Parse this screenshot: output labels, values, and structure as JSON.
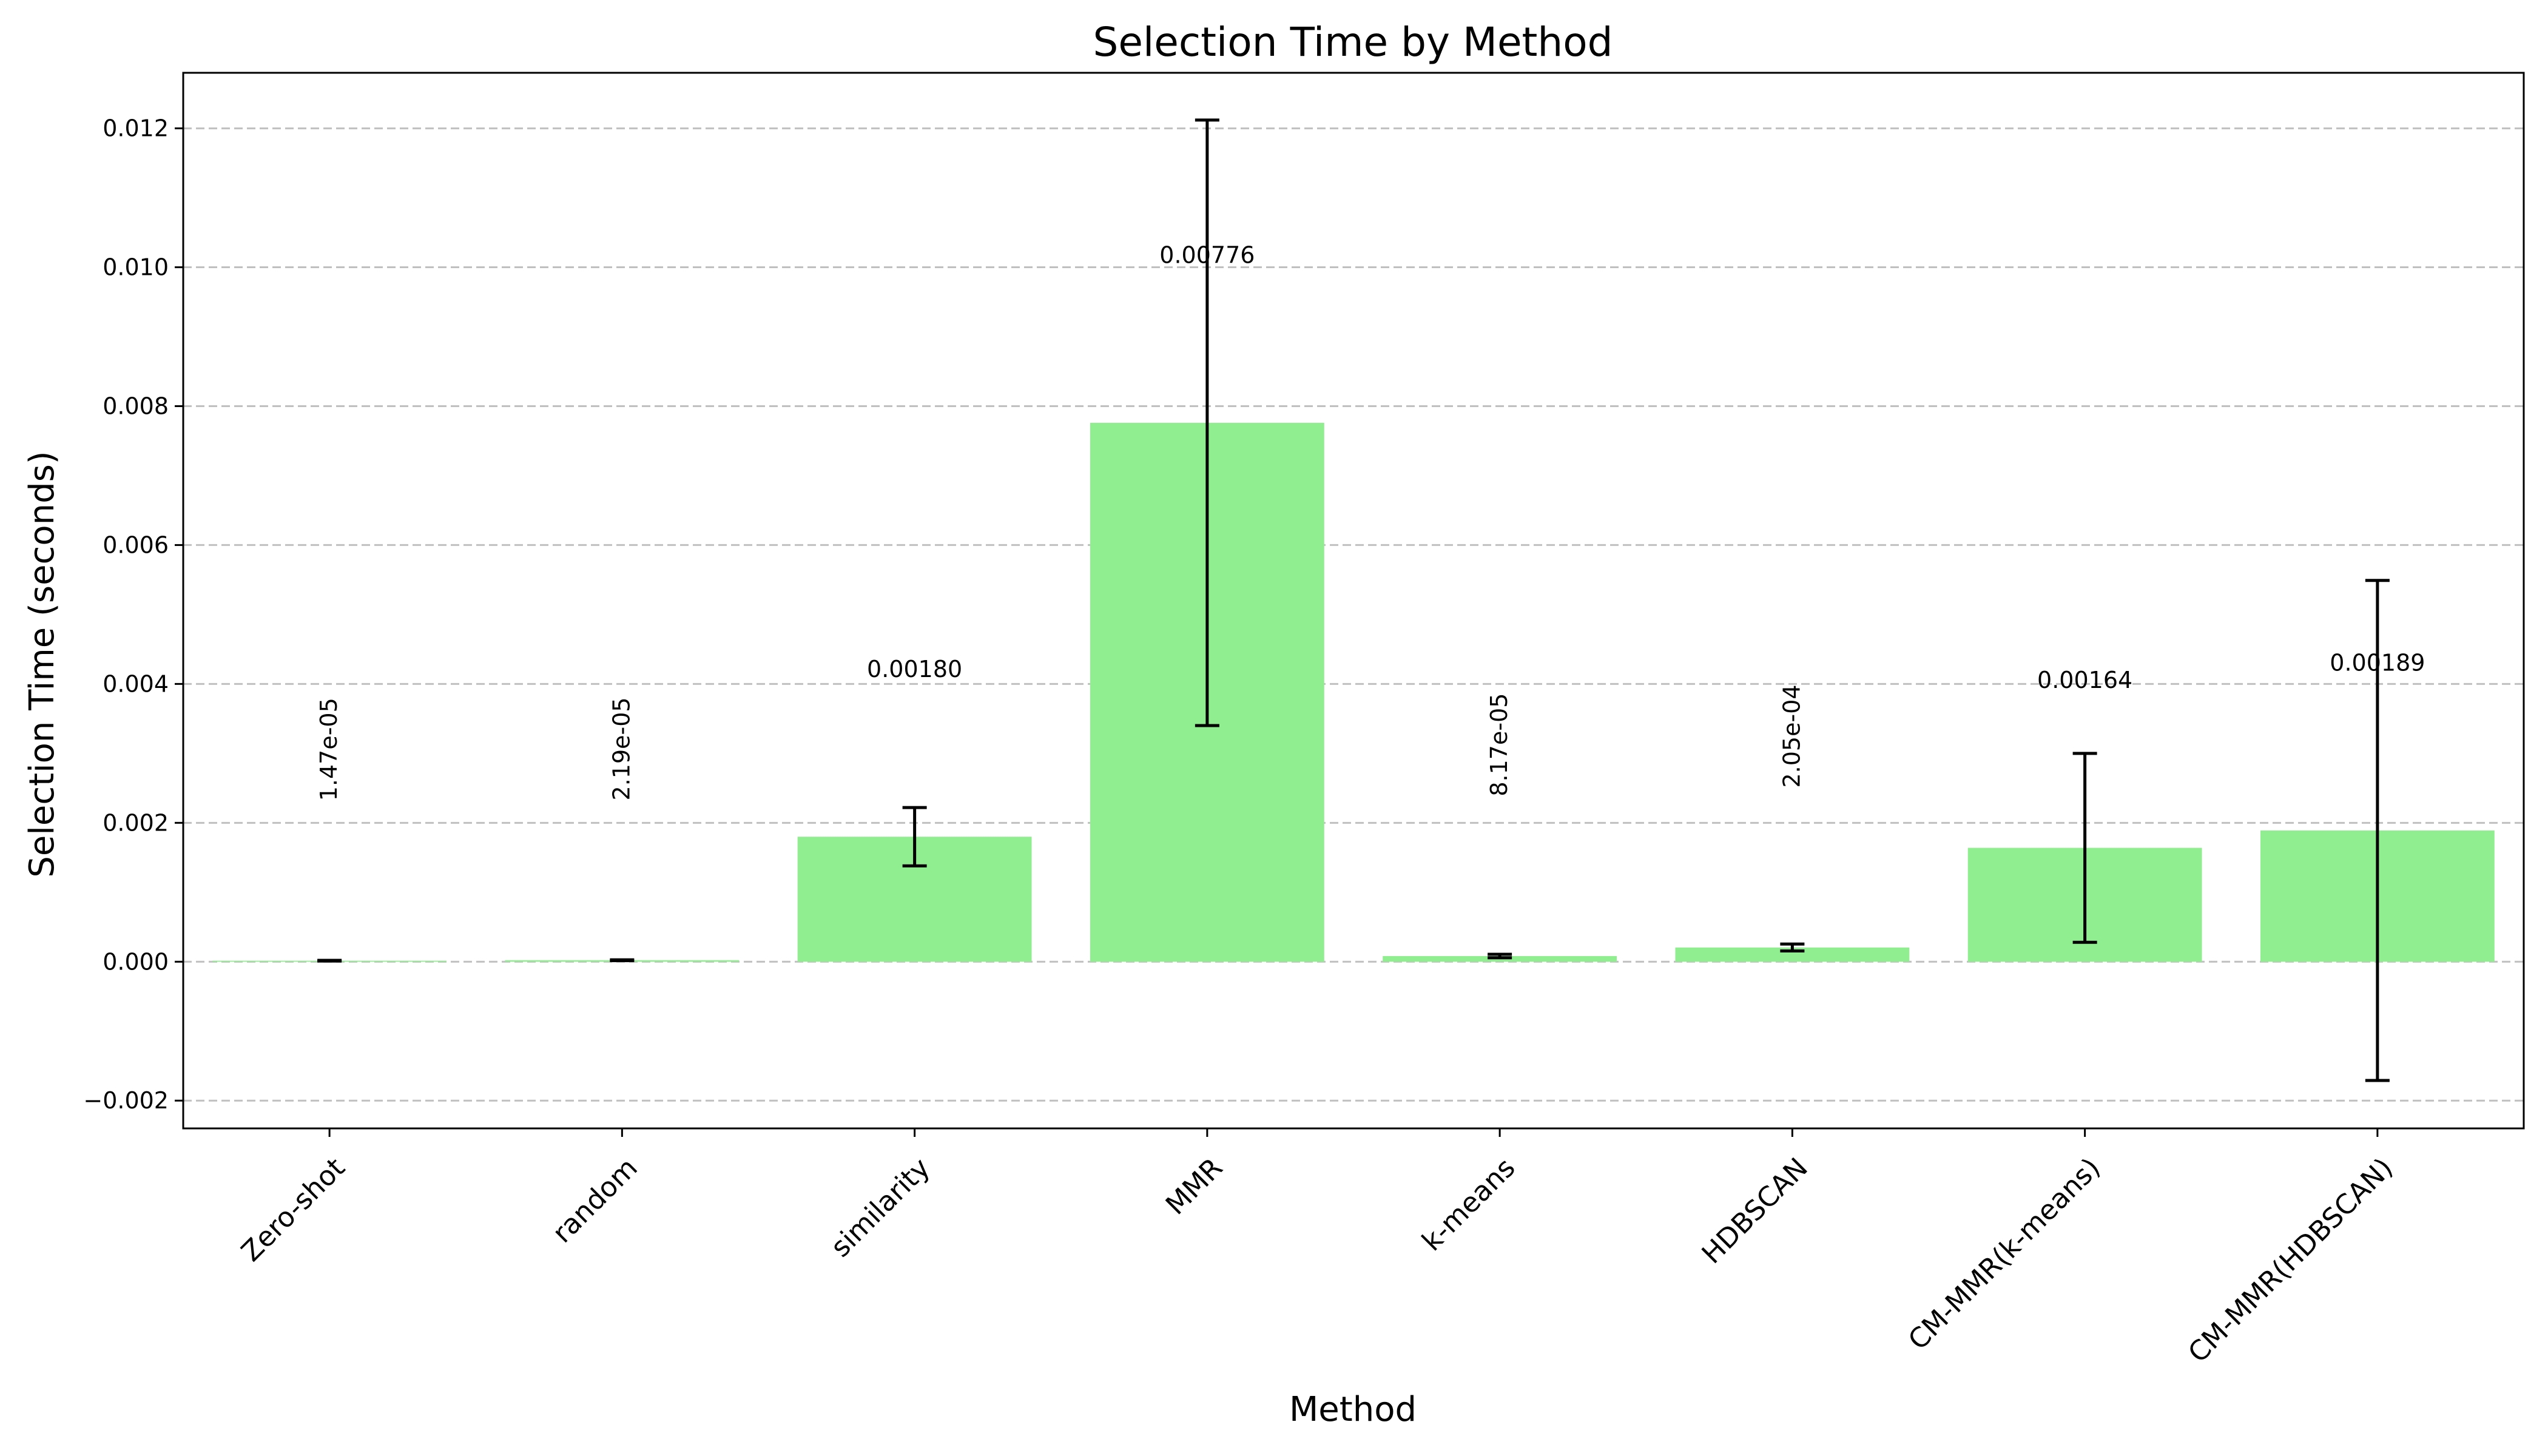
{
  "chart_data": {
    "type": "bar",
    "title": "Selection Time by Method",
    "xlabel": "Method",
    "ylabel": "Selection Time (seconds)",
    "categories": [
      "Zero-shot",
      "random",
      "similarity",
      "MMR",
      "k-means",
      "HDBSCAN",
      "CM-MMR(k-means)",
      "CM-MMR(HDBSCAN)"
    ],
    "values": [
      1.47e-05,
      2.19e-05,
      0.0018,
      0.00776,
      8.17e-05,
      0.000205,
      0.00164,
      0.00189
    ],
    "errors": [
      5e-06,
      6e-06,
      0.00042,
      0.00436,
      2.5e-05,
      5e-05,
      0.00136,
      0.0036
    ],
    "data_labels": [
      "1.47e-05",
      "2.19e-05",
      "0.00180",
      "0.00776",
      "8.17e-05",
      "2.05e-04",
      "0.00164",
      "0.00189"
    ],
    "ylim": [
      -0.0024,
      0.0128
    ],
    "yticks": [
      -0.002,
      0.0,
      0.002,
      0.004,
      0.006,
      0.008,
      0.01,
      0.012
    ],
    "ytick_labels": [
      "−0.002",
      "0.000",
      "0.002",
      "0.004",
      "0.006",
      "0.008",
      "0.010",
      "0.012"
    ],
    "grid": "y-dashed",
    "colors": {
      "bar": "#90ee90",
      "error": "#000000",
      "grid": "#c0c0c0",
      "axis": "#000000"
    }
  }
}
